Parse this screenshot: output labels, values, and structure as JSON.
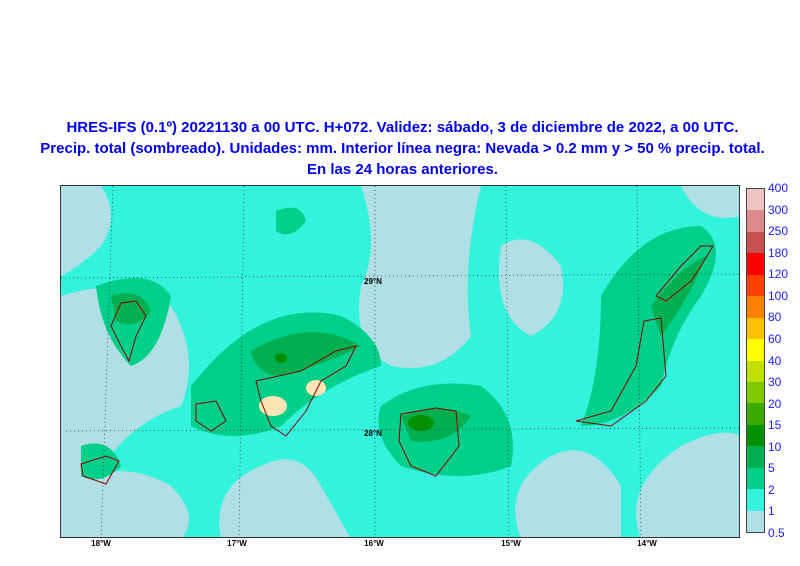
{
  "title": {
    "line1": "HRES-IFS (0.1º) 20221130 a 00 UTC. H+072. Validez: sábado, 3 de diciembre de 2022, a 00 UTC.",
    "line2": "Precip. total (sombreado). Unidades: mm. Interior línea negra: Nevada > 0.2 mm y > 50 % precip. total.",
    "line3": "En las 24 horas anteriores."
  },
  "map": {
    "lat_labels": [
      "29°N",
      "28°N"
    ],
    "lon_labels": [
      "18°W",
      "17°W",
      "16°W",
      "15°W",
      "14°W"
    ]
  },
  "legend": {
    "labels": [
      "0.5",
      "1",
      "2",
      "5",
      "10",
      "15",
      "20",
      "30",
      "40",
      "60",
      "80",
      "100",
      "120",
      "180",
      "250",
      "300",
      "400"
    ],
    "colors": [
      "#b0dfe5",
      "#33f3dd",
      "#00d08a",
      "#00b050",
      "#009000",
      "#3aaa00",
      "#80c800",
      "#c0e000",
      "#ffff00",
      "#ffc000",
      "#ff8000",
      "#ff4000",
      "#ff0000",
      "#c85050",
      "#dc8a8a",
      "#ecc4c4"
    ]
  }
}
